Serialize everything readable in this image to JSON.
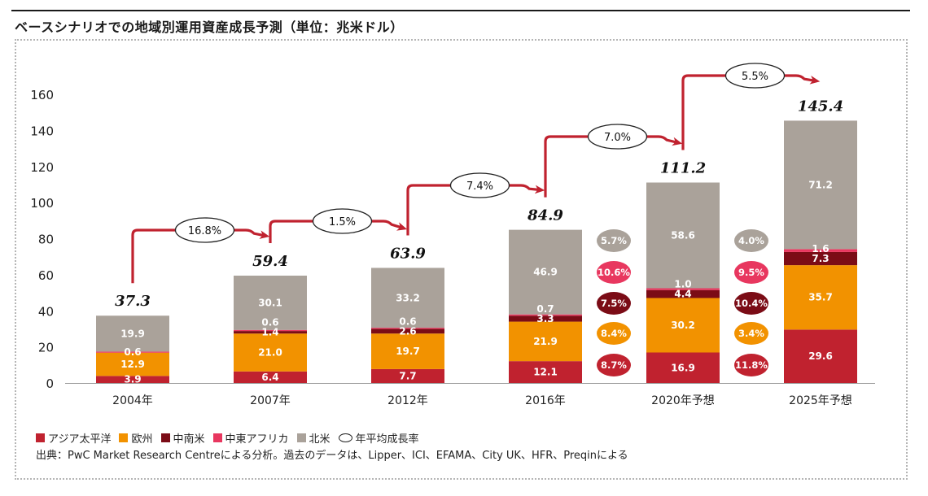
{
  "title": "ベースシナリオでの地域別運用資産成長予測（単位：兆米ドル）",
  "source": "出典：PwC Market Research Centreによる分析。過去のデータは、Lipper、ICI、EFAMA、City UK、HFR、Preqinによる",
  "legend_cagr_label": "年平均成長率",
  "colors": {
    "asia_pacific": "#c0222f",
    "europe": "#f29200",
    "latin_america": "#7b0c16",
    "middle_east_africa": "#e8375f",
    "north_america": "#aaa29a",
    "arrow": "#c0222f"
  },
  "chart_data": {
    "type": "bar",
    "stacked": true,
    "title": "ベースシナリオでの地域別運用資産成長予測（単位：兆米ドル）",
    "categories": [
      "2004年",
      "2007年",
      "2012年",
      "2016年",
      "2020年予想",
      "2025年予想"
    ],
    "ylim": [
      0,
      160
    ],
    "yticks": [
      0,
      20,
      40,
      60,
      80,
      100,
      120,
      140,
      160
    ],
    "series": [
      {
        "name": "アジア太平洋",
        "color": "#c0222f",
        "values": [
          3.9,
          6.4,
          7.7,
          12.1,
          16.9,
          29.6
        ],
        "labels": [
          "3.9",
          "6.4",
          "7.7",
          "12.1",
          "16.9",
          "29.6"
        ]
      },
      {
        "name": "欧州",
        "color": "#f29200",
        "values": [
          12.9,
          21.0,
          19.7,
          21.9,
          30.2,
          35.7
        ],
        "labels": [
          "12.9",
          "21.0",
          "19.7",
          "21.9",
          "30.2",
          "35.7"
        ]
      },
      {
        "name": "中南米",
        "color": "#7b0c16",
        "values": [
          0.0,
          1.4,
          2.6,
          3.3,
          4.4,
          7.3
        ],
        "labels": [
          "",
          "1.4",
          "2.6",
          "3.3",
          "4.4",
          "7.3"
        ]
      },
      {
        "name": "中東アフリカ",
        "color": "#e8375f",
        "values": [
          0.6,
          0.6,
          0.6,
          0.7,
          1.0,
          1.6
        ],
        "labels": [
          "0.6",
          "0.6",
          "0.6",
          "0.7",
          "1.0",
          "1.6"
        ]
      },
      {
        "name": "北米",
        "color": "#aaa29a",
        "values": [
          19.9,
          30.1,
          33.2,
          46.9,
          58.6,
          71.2
        ],
        "labels": [
          "19.9",
          "30.1",
          "33.2",
          "46.9",
          "58.6",
          "71.2"
        ]
      }
    ],
    "totals": [
      "37.3",
      "59.4",
      "63.9",
      "84.9",
      "111.2",
      "145.4"
    ],
    "cagr_between_bars": [
      "16.8%",
      "1.5%",
      "7.4%",
      "7.0%",
      "5.5%"
    ],
    "regional_cagr": [
      {
        "period": "2016-2020",
        "values": [
          "8.7%",
          "8.4%",
          "7.5%",
          "10.6%",
          "5.7%"
        ]
      },
      {
        "period": "2020-2025",
        "values": [
          "11.8%",
          "3.4%",
          "10.4%",
          "9.5%",
          "4.0%"
        ]
      }
    ]
  }
}
